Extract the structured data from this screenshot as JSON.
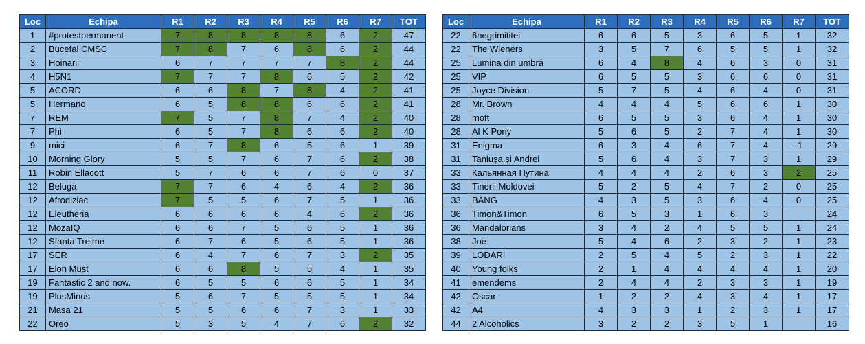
{
  "colors": {
    "header_bg": "#2e6fbd",
    "header_text": "#ffffff",
    "cell_bg": "#9dc3e6",
    "highlight_bg": "#548235",
    "border": "#1f2a3a"
  },
  "columns": [
    "Loc",
    "Echipa",
    "R1",
    "R2",
    "R3",
    "R4",
    "R5",
    "R6",
    "R7",
    "TOT"
  ],
  "left_rows": [
    {
      "loc": "1",
      "team": "#protestpermanent",
      "r": [
        "7",
        "8",
        "8",
        "8",
        "8",
        "6",
        "2"
      ],
      "tot": "47",
      "hl": [
        0,
        1,
        2,
        3,
        4,
        6
      ]
    },
    {
      "loc": "2",
      "team": "Bucefal CMSC",
      "r": [
        "7",
        "8",
        "7",
        "6",
        "8",
        "6",
        "2"
      ],
      "tot": "44",
      "hl": [
        0,
        1,
        4,
        6
      ]
    },
    {
      "loc": "3",
      "team": "Hoinarii",
      "r": [
        "6",
        "7",
        "7",
        "7",
        "7",
        "8",
        "2"
      ],
      "tot": "44",
      "hl": [
        5,
        6
      ]
    },
    {
      "loc": "4",
      "team": "H5N1",
      "r": [
        "7",
        "7",
        "7",
        "8",
        "6",
        "5",
        "2"
      ],
      "tot": "42",
      "hl": [
        0,
        3,
        6
      ]
    },
    {
      "loc": "5",
      "team": "ACORD",
      "r": [
        "6",
        "6",
        "8",
        "7",
        "8",
        "4",
        "2"
      ],
      "tot": "41",
      "hl": [
        2,
        4,
        6
      ]
    },
    {
      "loc": "5",
      "team": "Hermano",
      "r": [
        "6",
        "5",
        "8",
        "8",
        "6",
        "6",
        "2"
      ],
      "tot": "41",
      "hl": [
        2,
        3,
        6
      ]
    },
    {
      "loc": "7",
      "team": "REM",
      "r": [
        "7",
        "5",
        "7",
        "8",
        "7",
        "4",
        "2"
      ],
      "tot": "40",
      "hl": [
        0,
        3,
        6
      ]
    },
    {
      "loc": "7",
      "team": "Phi",
      "r": [
        "6",
        "5",
        "7",
        "8",
        "6",
        "6",
        "2"
      ],
      "tot": "40",
      "hl": [
        3,
        6
      ]
    },
    {
      "loc": "9",
      "team": "mici",
      "r": [
        "6",
        "7",
        "8",
        "6",
        "5",
        "6",
        "1"
      ],
      "tot": "39",
      "hl": [
        2
      ]
    },
    {
      "loc": "10",
      "team": "Morning Glory",
      "r": [
        "5",
        "5",
        "7",
        "6",
        "7",
        "6",
        "2"
      ],
      "tot": "38",
      "hl": [
        6
      ]
    },
    {
      "loc": "11",
      "team": "Robin Ellacott",
      "r": [
        "5",
        "7",
        "6",
        "6",
        "7",
        "6",
        "0"
      ],
      "tot": "37",
      "hl": []
    },
    {
      "loc": "12",
      "team": "Beluga",
      "r": [
        "7",
        "7",
        "6",
        "4",
        "6",
        "4",
        "2"
      ],
      "tot": "36",
      "hl": [
        0,
        6
      ]
    },
    {
      "loc": "12",
      "team": "Afrodiziac",
      "r": [
        "7",
        "5",
        "5",
        "6",
        "7",
        "5",
        "1"
      ],
      "tot": "36",
      "hl": [
        0
      ]
    },
    {
      "loc": "12",
      "team": "Eleutheria",
      "r": [
        "6",
        "6",
        "6",
        "6",
        "4",
        "6",
        "2"
      ],
      "tot": "36",
      "hl": [
        6
      ]
    },
    {
      "loc": "12",
      "team": "MozaIQ",
      "r": [
        "6",
        "6",
        "7",
        "5",
        "6",
        "5",
        "1"
      ],
      "tot": "36",
      "hl": []
    },
    {
      "loc": "12",
      "team": "Sfanta Treime",
      "r": [
        "6",
        "7",
        "6",
        "5",
        "6",
        "5",
        "1"
      ],
      "tot": "36",
      "hl": []
    },
    {
      "loc": "17",
      "team": "SER",
      "r": [
        "6",
        "4",
        "7",
        "6",
        "7",
        "3",
        "2"
      ],
      "tot": "35",
      "hl": [
        6
      ]
    },
    {
      "loc": "17",
      "team": "Elon Must",
      "r": [
        "6",
        "6",
        "8",
        "5",
        "5",
        "4",
        "1"
      ],
      "tot": "35",
      "hl": [
        2
      ]
    },
    {
      "loc": "19",
      "team": "Fantastic 2 and now.",
      "r": [
        "6",
        "5",
        "5",
        "6",
        "6",
        "5",
        "1"
      ],
      "tot": "34",
      "hl": []
    },
    {
      "loc": "19",
      "team": "PlusMinus",
      "r": [
        "5",
        "6",
        "7",
        "5",
        "5",
        "5",
        "1"
      ],
      "tot": "34",
      "hl": []
    },
    {
      "loc": "21",
      "team": "Masa 21",
      "r": [
        "5",
        "5",
        "6",
        "6",
        "7",
        "3",
        "1"
      ],
      "tot": "33",
      "hl": []
    },
    {
      "loc": "22",
      "team": "Oreo",
      "r": [
        "5",
        "3",
        "5",
        "4",
        "7",
        "6",
        "2"
      ],
      "tot": "32",
      "hl": [
        6
      ]
    }
  ],
  "right_rows": [
    {
      "loc": "22",
      "team": "6negrimititei",
      "r": [
        "6",
        "6",
        "5",
        "3",
        "6",
        "5",
        "1"
      ],
      "tot": "32",
      "hl": []
    },
    {
      "loc": "22",
      "team": "The Wieners",
      "r": [
        "3",
        "5",
        "7",
        "6",
        "5",
        "5",
        "1"
      ],
      "tot": "32",
      "hl": []
    },
    {
      "loc": "25",
      "team": "Lumina din umbră",
      "r": [
        "6",
        "4",
        "8",
        "4",
        "6",
        "3",
        "0"
      ],
      "tot": "31",
      "hl": [
        2
      ]
    },
    {
      "loc": "25",
      "team": "VIP",
      "r": [
        "6",
        "5",
        "5",
        "3",
        "6",
        "6",
        "0"
      ],
      "tot": "31",
      "hl": []
    },
    {
      "loc": "25",
      "team": "Joyce Division",
      "r": [
        "5",
        "7",
        "5",
        "4",
        "6",
        "4",
        "0"
      ],
      "tot": "31",
      "hl": []
    },
    {
      "loc": "28",
      "team": "Mr. Brown",
      "r": [
        "4",
        "4",
        "4",
        "5",
        "6",
        "6",
        "1"
      ],
      "tot": "30",
      "hl": []
    },
    {
      "loc": "28",
      "team": "moft",
      "r": [
        "6",
        "5",
        "5",
        "3",
        "6",
        "4",
        "1"
      ],
      "tot": "30",
      "hl": []
    },
    {
      "loc": "28",
      "team": "Al K Pony",
      "r": [
        "5",
        "6",
        "5",
        "2",
        "7",
        "4",
        "1"
      ],
      "tot": "30",
      "hl": []
    },
    {
      "loc": "31",
      "team": "Enigma",
      "r": [
        "6",
        "3",
        "4",
        "6",
        "7",
        "4",
        "-1"
      ],
      "tot": "29",
      "hl": []
    },
    {
      "loc": "31",
      "team": "Taniușa și Andrei",
      "r": [
        "5",
        "6",
        "4",
        "3",
        "7",
        "3",
        "1"
      ],
      "tot": "29",
      "hl": []
    },
    {
      "loc": "33",
      "team": "Кальянная Путина",
      "r": [
        "4",
        "4",
        "4",
        "2",
        "6",
        "3",
        "2"
      ],
      "tot": "25",
      "hl": [
        6
      ]
    },
    {
      "loc": "33",
      "team": "Tinerii Moldovei",
      "r": [
        "5",
        "2",
        "5",
        "4",
        "7",
        "2",
        "0"
      ],
      "tot": "25",
      "hl": []
    },
    {
      "loc": "33",
      "team": "BANG",
      "r": [
        "4",
        "3",
        "5",
        "3",
        "6",
        "4",
        "0"
      ],
      "tot": "25",
      "hl": []
    },
    {
      "loc": "36",
      "team": "Timon&Timon",
      "r": [
        "6",
        "5",
        "3",
        "1",
        "6",
        "3",
        ""
      ],
      "tot": "24",
      "hl": []
    },
    {
      "loc": "36",
      "team": "Mandalorians",
      "r": [
        "3",
        "4",
        "2",
        "4",
        "5",
        "5",
        "1"
      ],
      "tot": "24",
      "hl": []
    },
    {
      "loc": "38",
      "team": "Joe",
      "r": [
        "5",
        "4",
        "6",
        "2",
        "3",
        "2",
        "1"
      ],
      "tot": "23",
      "hl": []
    },
    {
      "loc": "39",
      "team": "LODARI",
      "r": [
        "2",
        "5",
        "4",
        "5",
        "2",
        "3",
        "1"
      ],
      "tot": "22",
      "hl": []
    },
    {
      "loc": "40",
      "team": "Young folks",
      "r": [
        "2",
        "1",
        "4",
        "4",
        "4",
        "4",
        "1"
      ],
      "tot": "20",
      "hl": []
    },
    {
      "loc": "41",
      "team": "emendems",
      "r": [
        "2",
        "4",
        "4",
        "2",
        "3",
        "3",
        "1"
      ],
      "tot": "19",
      "hl": []
    },
    {
      "loc": "42",
      "team": "Oscar",
      "r": [
        "1",
        "2",
        "2",
        "4",
        "3",
        "4",
        "1"
      ],
      "tot": "17",
      "hl": []
    },
    {
      "loc": "42",
      "team": "A4",
      "r": [
        "4",
        "3",
        "3",
        "1",
        "2",
        "3",
        "1"
      ],
      "tot": "17",
      "hl": []
    },
    {
      "loc": "44",
      "team": "2 Alcoholics",
      "r": [
        "3",
        "2",
        "2",
        "3",
        "5",
        "1",
        ""
      ],
      "tot": "16",
      "hl": []
    }
  ]
}
